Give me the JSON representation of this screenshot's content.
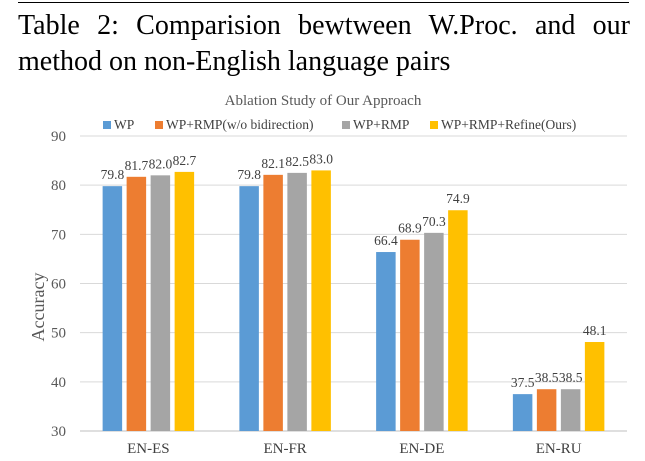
{
  "caption": {
    "line1": "Table 2:  Comparision bewtween W.Proc.   and our",
    "line2": "method on non-English language pairs"
  },
  "chart_data": {
    "type": "bar",
    "title": "Ablation Study of Our Approach",
    "xlabel": "",
    "ylabel": "Accuracy",
    "ylim": [
      30,
      90
    ],
    "yticks": [
      30,
      40,
      50,
      60,
      70,
      80,
      90
    ],
    "grid": true,
    "legend_position": "top",
    "categories": [
      "EN-ES",
      "EN-FR",
      "EN-DE",
      "EN-RU"
    ],
    "series": [
      {
        "name": "WP",
        "color": "#5B9BD5",
        "values": [
          79.8,
          79.8,
          66.4,
          37.5
        ]
      },
      {
        "name": "WP+RMP(w/o bidirection)",
        "color": "#ED7D31",
        "values": [
          81.7,
          82.1,
          68.9,
          38.5
        ]
      },
      {
        "name": "WP+RMP",
        "color": "#A5A5A5",
        "values": [
          82.0,
          82.5,
          70.3,
          38.5
        ]
      },
      {
        "name": "WP+RMP+Refine(Ours)",
        "color": "#FFC000",
        "values": [
          82.7,
          83.0,
          74.9,
          48.1
        ]
      }
    ]
  }
}
